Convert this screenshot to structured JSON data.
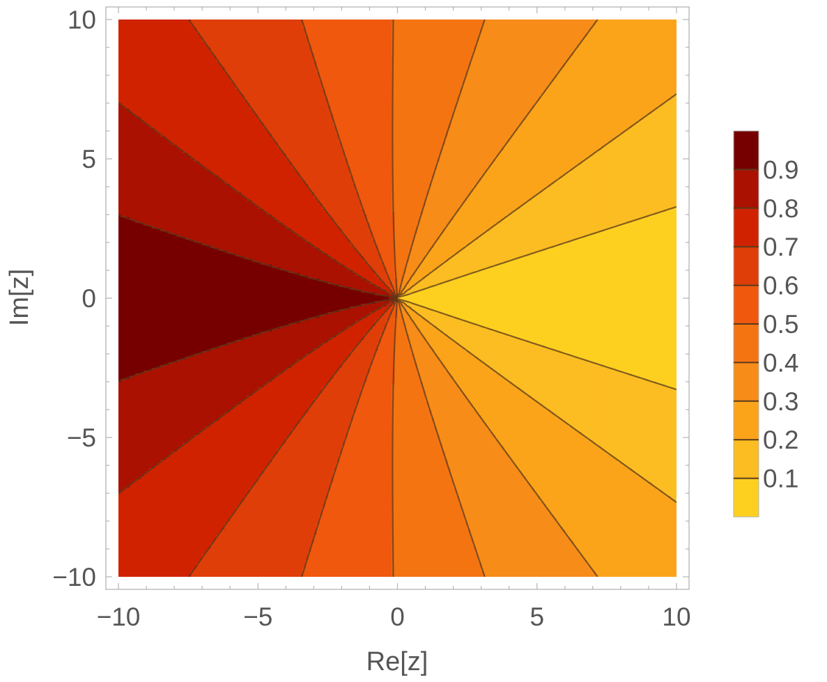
{
  "chart_data": {
    "type": "contour",
    "xlabel": "Re[z]",
    "ylabel": "Im[z]",
    "xlim": [
      -10,
      10
    ],
    "ylim": [
      -10,
      10
    ],
    "x_ticks": [
      -10,
      -5,
      0,
      5,
      10
    ],
    "y_ticks": [
      -10,
      -5,
      0,
      5,
      10
    ],
    "x_tick_labels": [
      "−10",
      "−5",
      "0",
      "5",
      "10"
    ],
    "y_tick_labels": [
      "−10",
      "−5",
      "0",
      "5",
      "10"
    ],
    "contour_levels": [
      0.1,
      0.2,
      0.3,
      0.4,
      0.5,
      0.6,
      0.7,
      0.8,
      0.9
    ],
    "value_range": [
      0,
      1
    ],
    "colorbar": {
      "placement": "right",
      "labels": [
        "0.9",
        "0.8",
        "0.7",
        "0.6",
        "0.5",
        "0.4",
        "0.3",
        "0.2",
        "0.1"
      ]
    },
    "band_colors": [
      "#fdd020",
      "#fcbd22",
      "#fba41a",
      "#f78c18",
      "#f57412",
      "#f0580e",
      "#e03e08",
      "#d12200",
      "#aa1100",
      "#760000"
    ],
    "line_color": "#5a3a1c",
    "frame_color": "#b3b3b3",
    "text_color": "#555555",
    "grid": false
  }
}
